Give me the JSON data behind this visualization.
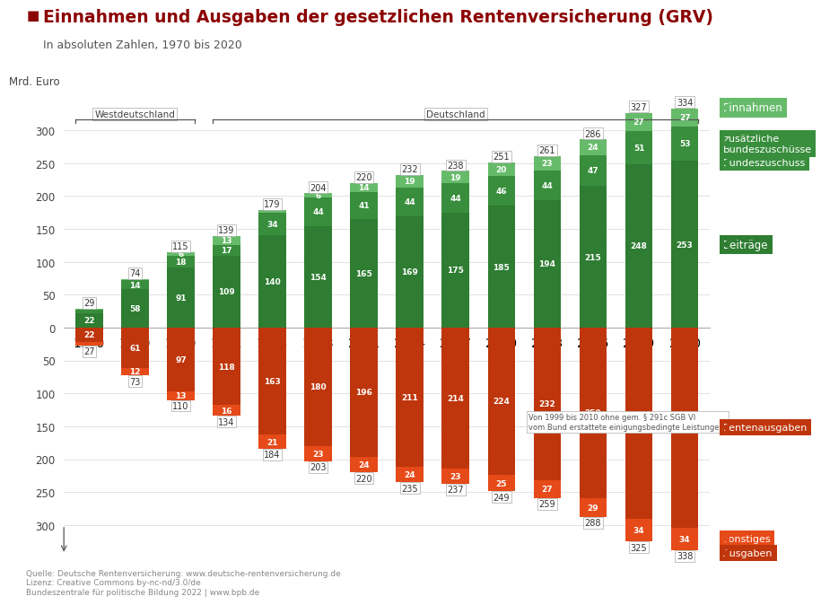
{
  "years": [
    1970,
    1980,
    1990,
    1991,
    1995,
    1998,
    2001,
    2004,
    2007,
    2010,
    2013,
    2016,
    2019,
    2020
  ],
  "income": {
    "beitraege": [
      22,
      58,
      91,
      109,
      140,
      154,
      165,
      169,
      175,
      185,
      194,
      215,
      248,
      253
    ],
    "bundeszuschuss": [
      5,
      14,
      18,
      17,
      34,
      44,
      41,
      44,
      44,
      46,
      44,
      47,
      51,
      53
    ],
    "zusatz_bundes": [
      2,
      2,
      6,
      13,
      5,
      6,
      14,
      19,
      19,
      20,
      23,
      24,
      27,
      27
    ],
    "total": [
      29,
      74,
      115,
      139,
      179,
      204,
      220,
      232,
      238,
      251,
      261,
      286,
      327,
      334
    ]
  },
  "expenditure": {
    "rentenausgaben": [
      22,
      61,
      97,
      118,
      163,
      180,
      196,
      211,
      214,
      224,
      232,
      259,
      291,
      304
    ],
    "sonstiges": [
      5,
      12,
      13,
      16,
      21,
      23,
      24,
      24,
      23,
      25,
      27,
      29,
      34,
      34
    ],
    "total": [
      27,
      73,
      110,
      134,
      184,
      203,
      220,
      235,
      237,
      249,
      259,
      288,
      325,
      338
    ]
  },
  "title": "Einnahmen und Ausgaben der gesetzlichen Rentenversicherung (GRV)",
  "subtitle": "In absoluten Zahlen, 1970 bis 2020",
  "ylabel": "Mrd. Euro",
  "color_beitraege": "#2e7d32",
  "color_bundeszuschuss": "#388e3c",
  "color_zusatz": "#66bb6a",
  "color_rentenausgaben": "#bf360c",
  "color_sonstiges": "#e64a19",
  "color_title": "#8b0000",
  "color_bg": "#ffffff",
  "westdeutschland_years": [
    1970,
    1980,
    1990
  ],
  "deutschland_years": [
    1991,
    1995,
    1998,
    2001,
    2004,
    2007,
    2010,
    2013,
    2016,
    2019,
    2020
  ],
  "source_text": "Quelle: Deutsche Rentenversicherung: www.deutsche-rentenversicherung.de\nLizenz: Creative Commons by-nc-nd/3.0/de\nBundeszentrale für politische Bildung 2022 | www.bpb.de",
  "annotation_text": "Von 1999 bis 2010 ohne gem. § 291c SGB VI\nvom Bund erstattete einigungsbedingte Leistungen."
}
